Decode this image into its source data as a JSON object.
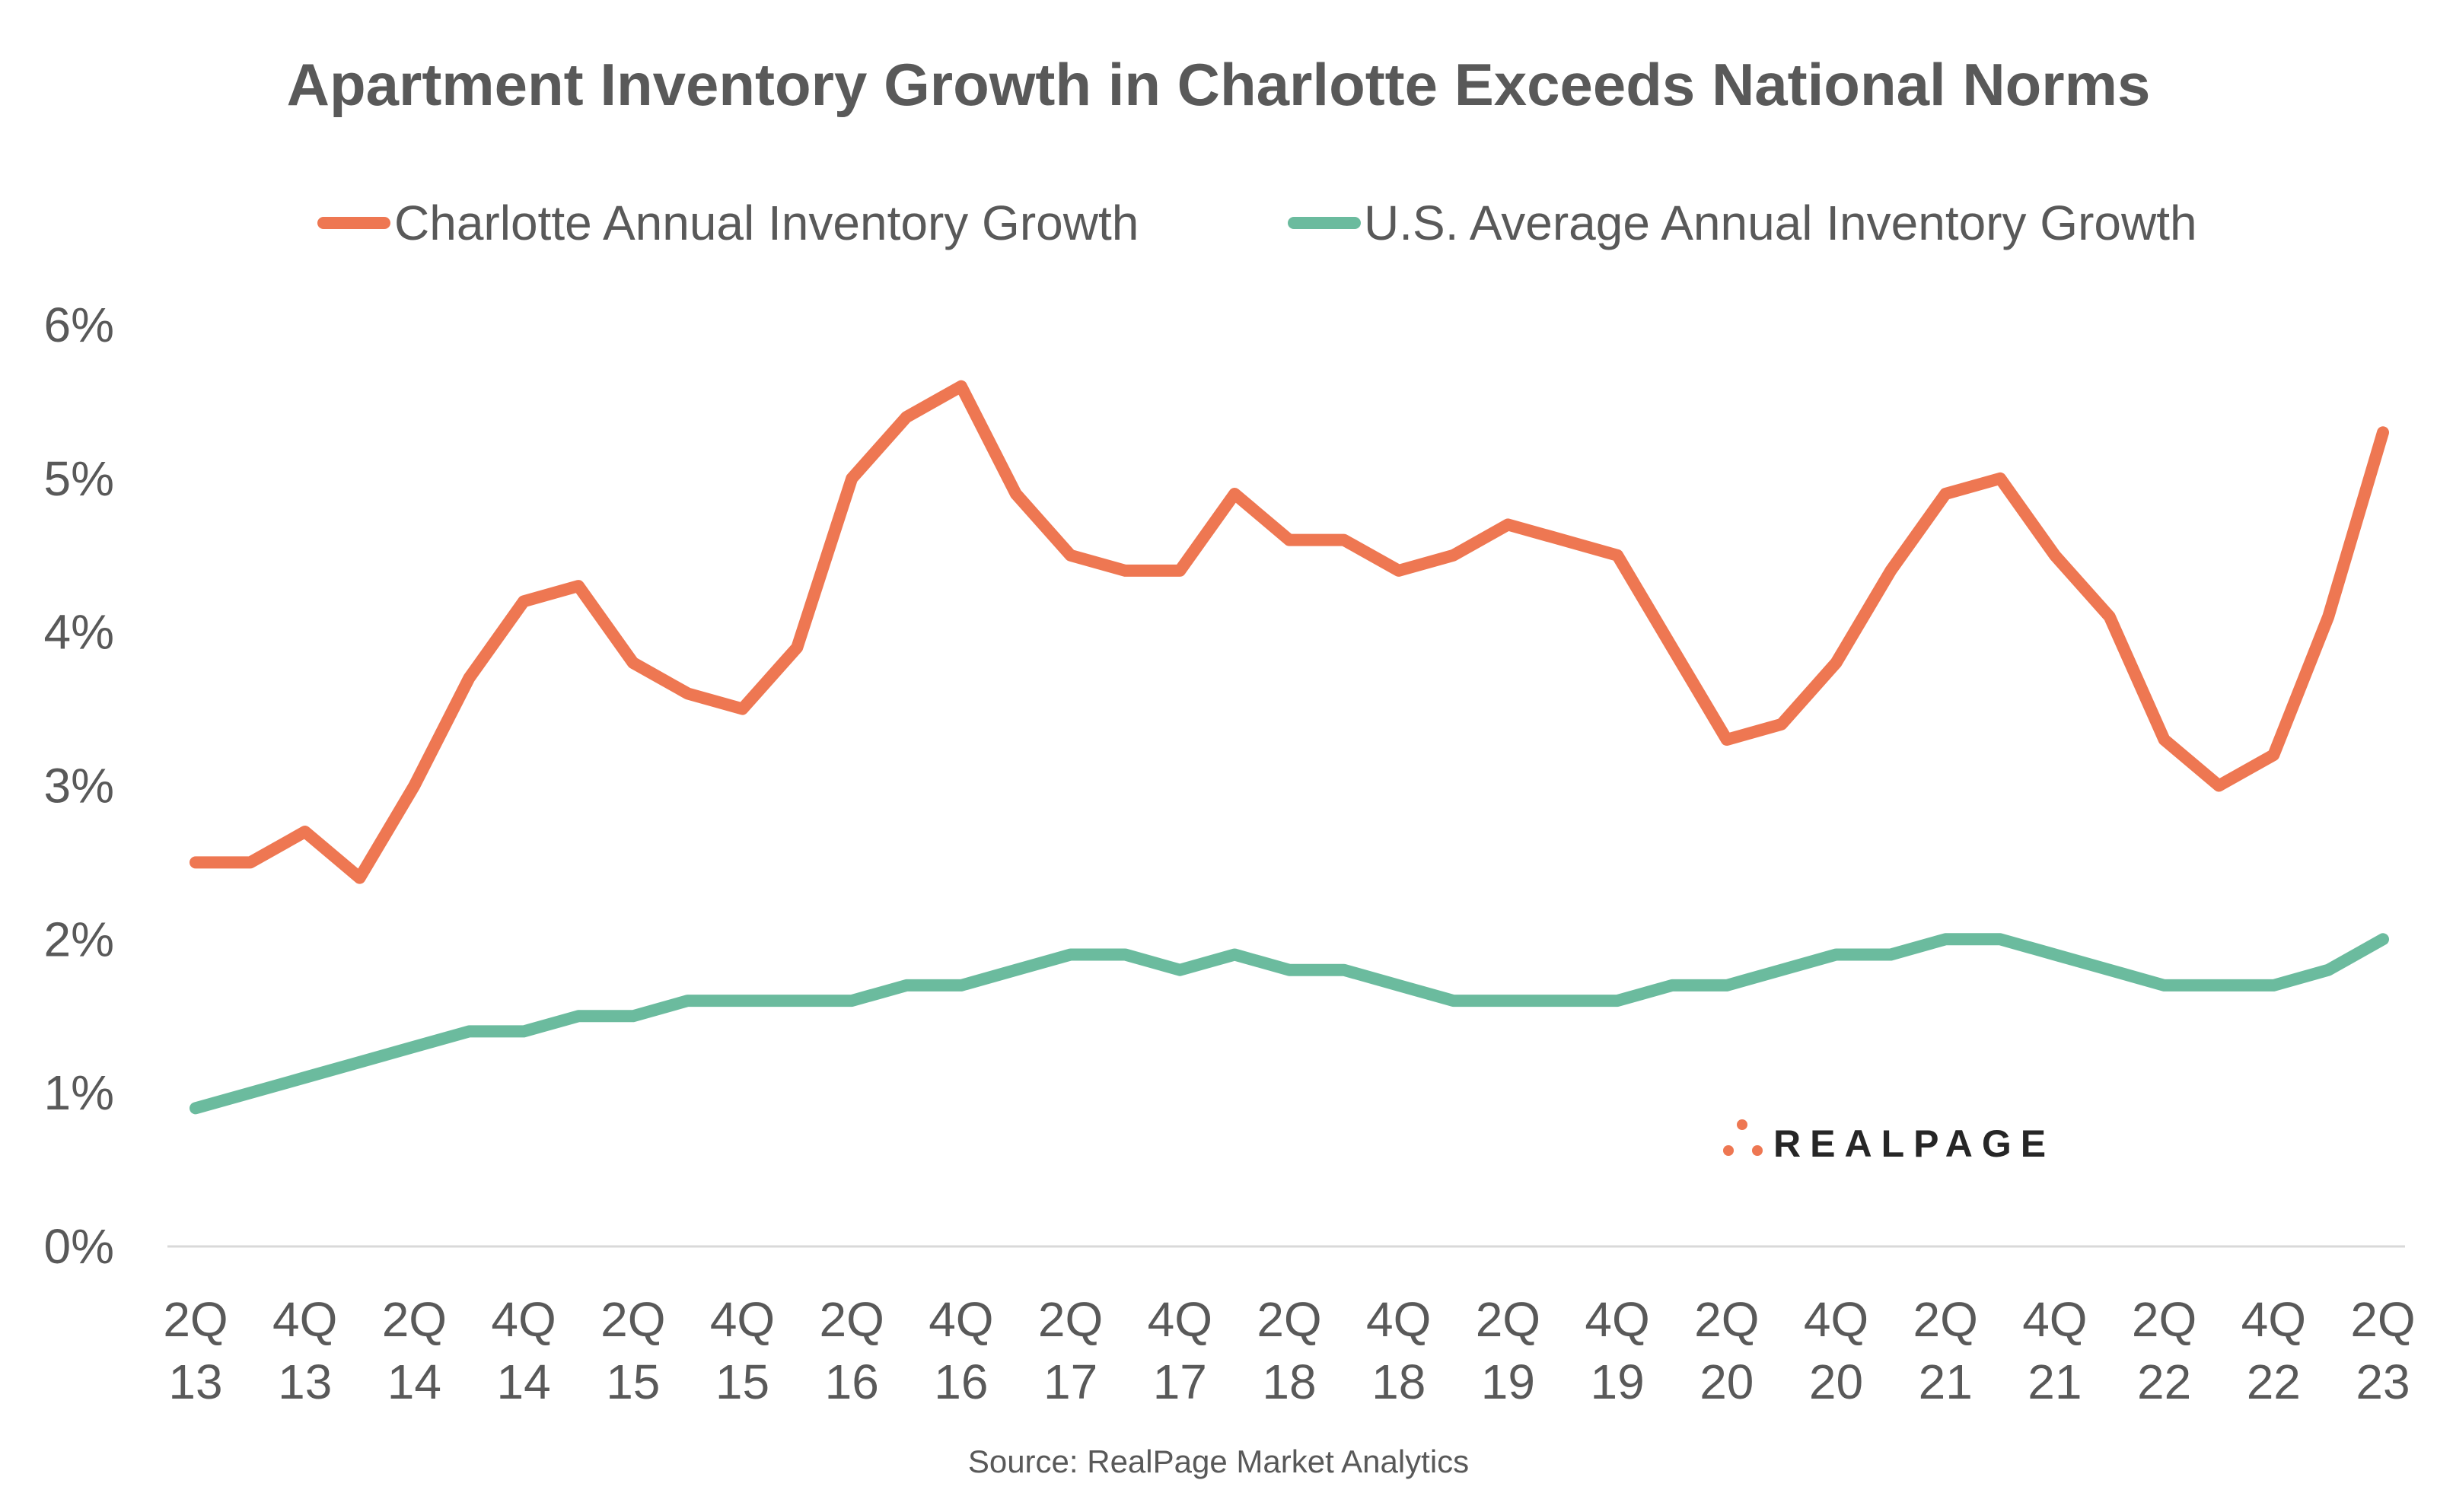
{
  "chart_data": {
    "type": "line",
    "title": "Apartment Inventory Growth in Charlotte Exceeds National Norms",
    "source": "Source: RealPage Market Analytics",
    "logo": "REALPAGE",
    "legend_position": "top",
    "grid": false,
    "ylim": [
      0,
      6
    ],
    "yticks": [
      "0%",
      "1%",
      "2%",
      "3%",
      "4%",
      "5%",
      "6%"
    ],
    "x": [
      "2Q13",
      "3Q13",
      "4Q13",
      "1Q14",
      "2Q14",
      "3Q14",
      "4Q14",
      "1Q15",
      "2Q15",
      "3Q15",
      "4Q15",
      "1Q16",
      "2Q16",
      "3Q16",
      "4Q16",
      "1Q17",
      "2Q17",
      "3Q17",
      "4Q17",
      "1Q18",
      "2Q18",
      "3Q18",
      "4Q18",
      "1Q19",
      "2Q19",
      "3Q19",
      "4Q19",
      "1Q20",
      "2Q20",
      "3Q20",
      "4Q20",
      "1Q21",
      "2Q21",
      "3Q21",
      "4Q21",
      "1Q22",
      "2Q22",
      "3Q22",
      "4Q22",
      "1Q23",
      "2Q23"
    ],
    "xticks": [
      [
        "2Q",
        "13"
      ],
      [
        "4Q",
        "13"
      ],
      [
        "2Q",
        "14"
      ],
      [
        "4Q",
        "14"
      ],
      [
        "2Q",
        "15"
      ],
      [
        "4Q",
        "15"
      ],
      [
        "2Q",
        "16"
      ],
      [
        "4Q",
        "16"
      ],
      [
        "2Q",
        "17"
      ],
      [
        "4Q",
        "17"
      ],
      [
        "2Q",
        "18"
      ],
      [
        "4Q",
        "18"
      ],
      [
        "2Q",
        "19"
      ],
      [
        "4Q",
        "19"
      ],
      [
        "2Q",
        "20"
      ],
      [
        "4Q",
        "20"
      ],
      [
        "2Q",
        "21"
      ],
      [
        "4Q",
        "21"
      ],
      [
        "2Q",
        "22"
      ],
      [
        "4Q",
        "22"
      ],
      [
        "2Q",
        "23"
      ]
    ],
    "series": [
      {
        "name": "Charlotte Annual Inventory Growth",
        "color": "#EE7752",
        "values": [
          2.5,
          2.5,
          2.7,
          2.4,
          3.0,
          3.7,
          4.2,
          4.3,
          3.8,
          3.6,
          3.5,
          3.9,
          5.0,
          5.4,
          5.6,
          4.9,
          4.5,
          4.4,
          4.4,
          4.9,
          4.6,
          4.6,
          4.4,
          4.5,
          4.7,
          4.6,
          4.5,
          3.9,
          3.3,
          3.4,
          3.8,
          4.4,
          4.9,
          5.0,
          4.5,
          4.1,
          3.3,
          3.0,
          3.2,
          4.1,
          5.3
        ]
      },
      {
        "name": "U.S. Average Annual Inventory Growth",
        "color": "#6BBB9E",
        "values": [
          0.9,
          1.0,
          1.1,
          1.2,
          1.3,
          1.4,
          1.4,
          1.5,
          1.5,
          1.6,
          1.6,
          1.6,
          1.6,
          1.7,
          1.7,
          1.8,
          1.9,
          1.9,
          1.8,
          1.9,
          1.8,
          1.8,
          1.7,
          1.6,
          1.6,
          1.6,
          1.6,
          1.7,
          1.7,
          1.8,
          1.9,
          1.9,
          2.0,
          2.0,
          1.9,
          1.8,
          1.7,
          1.7,
          1.7,
          1.8,
          2.0
        ]
      }
    ]
  }
}
